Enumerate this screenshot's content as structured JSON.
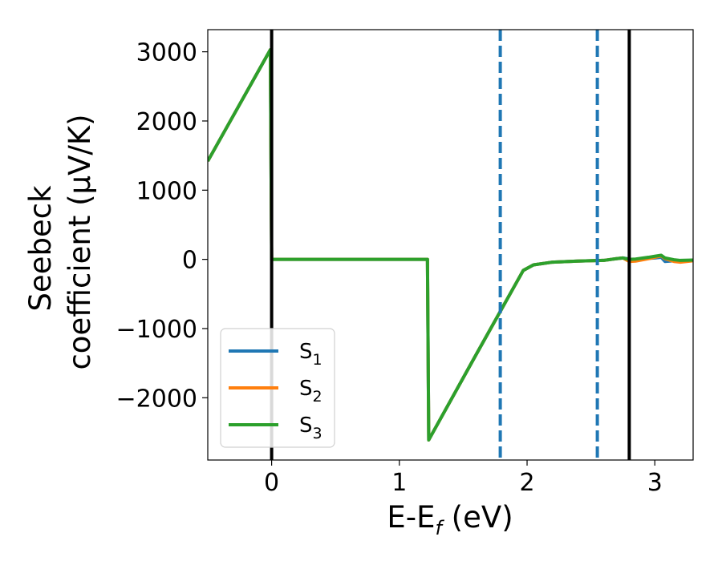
{
  "chart_data": {
    "type": "line",
    "title": "",
    "xlabel": {
      "main": "E-E",
      "sub": "f",
      "tail": " (eV)"
    },
    "ylabel": {
      "line1": "Seebeck",
      "line2": "coefficient  (μV/K)"
    },
    "xlim": [
      -0.5,
      3.3
    ],
    "ylim": [
      -2900,
      3320
    ],
    "xticks": [
      0,
      1,
      2,
      3
    ],
    "xtick_labels": [
      "0",
      "1",
      "2",
      "3"
    ],
    "yticks": [
      -2000,
      -1000,
      0,
      1000,
      2000,
      3000
    ],
    "ytick_labels": [
      "−2000",
      "−1000",
      "0",
      "1000",
      "2000",
      "3000"
    ],
    "grid": false,
    "legend_position": "lower-left",
    "vlines": [
      {
        "x": 0.0,
        "style": "solid",
        "color": "#000000"
      },
      {
        "x": 2.8,
        "style": "solid",
        "color": "#000000"
      },
      {
        "x": 1.79,
        "style": "dashed",
        "color": "#1f77b4"
      },
      {
        "x": 2.55,
        "style": "dashed",
        "color": "#1f77b4"
      }
    ],
    "series": [
      {
        "name": "S1",
        "name_main": "S",
        "name_sub": "1",
        "color": "#1f77b4",
        "x": [
          -0.5,
          -0.01,
          0.0,
          0.01,
          1.22,
          1.23,
          1.6,
          1.9,
          1.97,
          2.05,
          2.2,
          2.4,
          2.6,
          2.7,
          2.75,
          2.8,
          2.85,
          2.95,
          3.0,
          3.05,
          3.08,
          3.15,
          3.2,
          3.3
        ],
        "y": [
          1420,
          3030,
          0,
          0,
          0,
          -2610,
          -1380,
          -390,
          -160,
          -80,
          -40,
          -25,
          -15,
          10,
          20,
          5,
          -10,
          15,
          20,
          30,
          -30,
          -20,
          -30,
          -10
        ]
      },
      {
        "name": "S2",
        "name_main": "S",
        "name_sub": "2",
        "color": "#ff7f0e",
        "x": [
          -0.5,
          -0.01,
          0.0,
          0.01,
          1.22,
          1.23,
          1.6,
          1.9,
          1.97,
          2.05,
          2.2,
          2.4,
          2.6,
          2.7,
          2.75,
          2.8,
          2.85,
          2.95,
          3.0,
          3.05,
          3.08,
          3.15,
          3.2,
          3.3
        ],
        "y": [
          1420,
          3030,
          0,
          0,
          0,
          -2610,
          -1380,
          -390,
          -160,
          -80,
          -40,
          -25,
          -15,
          10,
          20,
          -30,
          -25,
          10,
          30,
          50,
          10,
          -30,
          -40,
          -20
        ]
      },
      {
        "name": "S3",
        "name_main": "S",
        "name_sub": "3",
        "color": "#2ca02c",
        "x": [
          -0.5,
          -0.01,
          0.0,
          0.01,
          1.22,
          1.23,
          1.6,
          1.9,
          1.97,
          2.05,
          2.2,
          2.4,
          2.6,
          2.7,
          2.75,
          2.8,
          2.85,
          2.95,
          3.0,
          3.05,
          3.08,
          3.15,
          3.2,
          3.3
        ],
        "y": [
          1420,
          3030,
          0,
          0,
          0,
          -2610,
          -1380,
          -390,
          -160,
          -80,
          -40,
          -25,
          -15,
          10,
          20,
          0,
          5,
          30,
          45,
          60,
          20,
          -5,
          -15,
          -10
        ]
      }
    ]
  }
}
